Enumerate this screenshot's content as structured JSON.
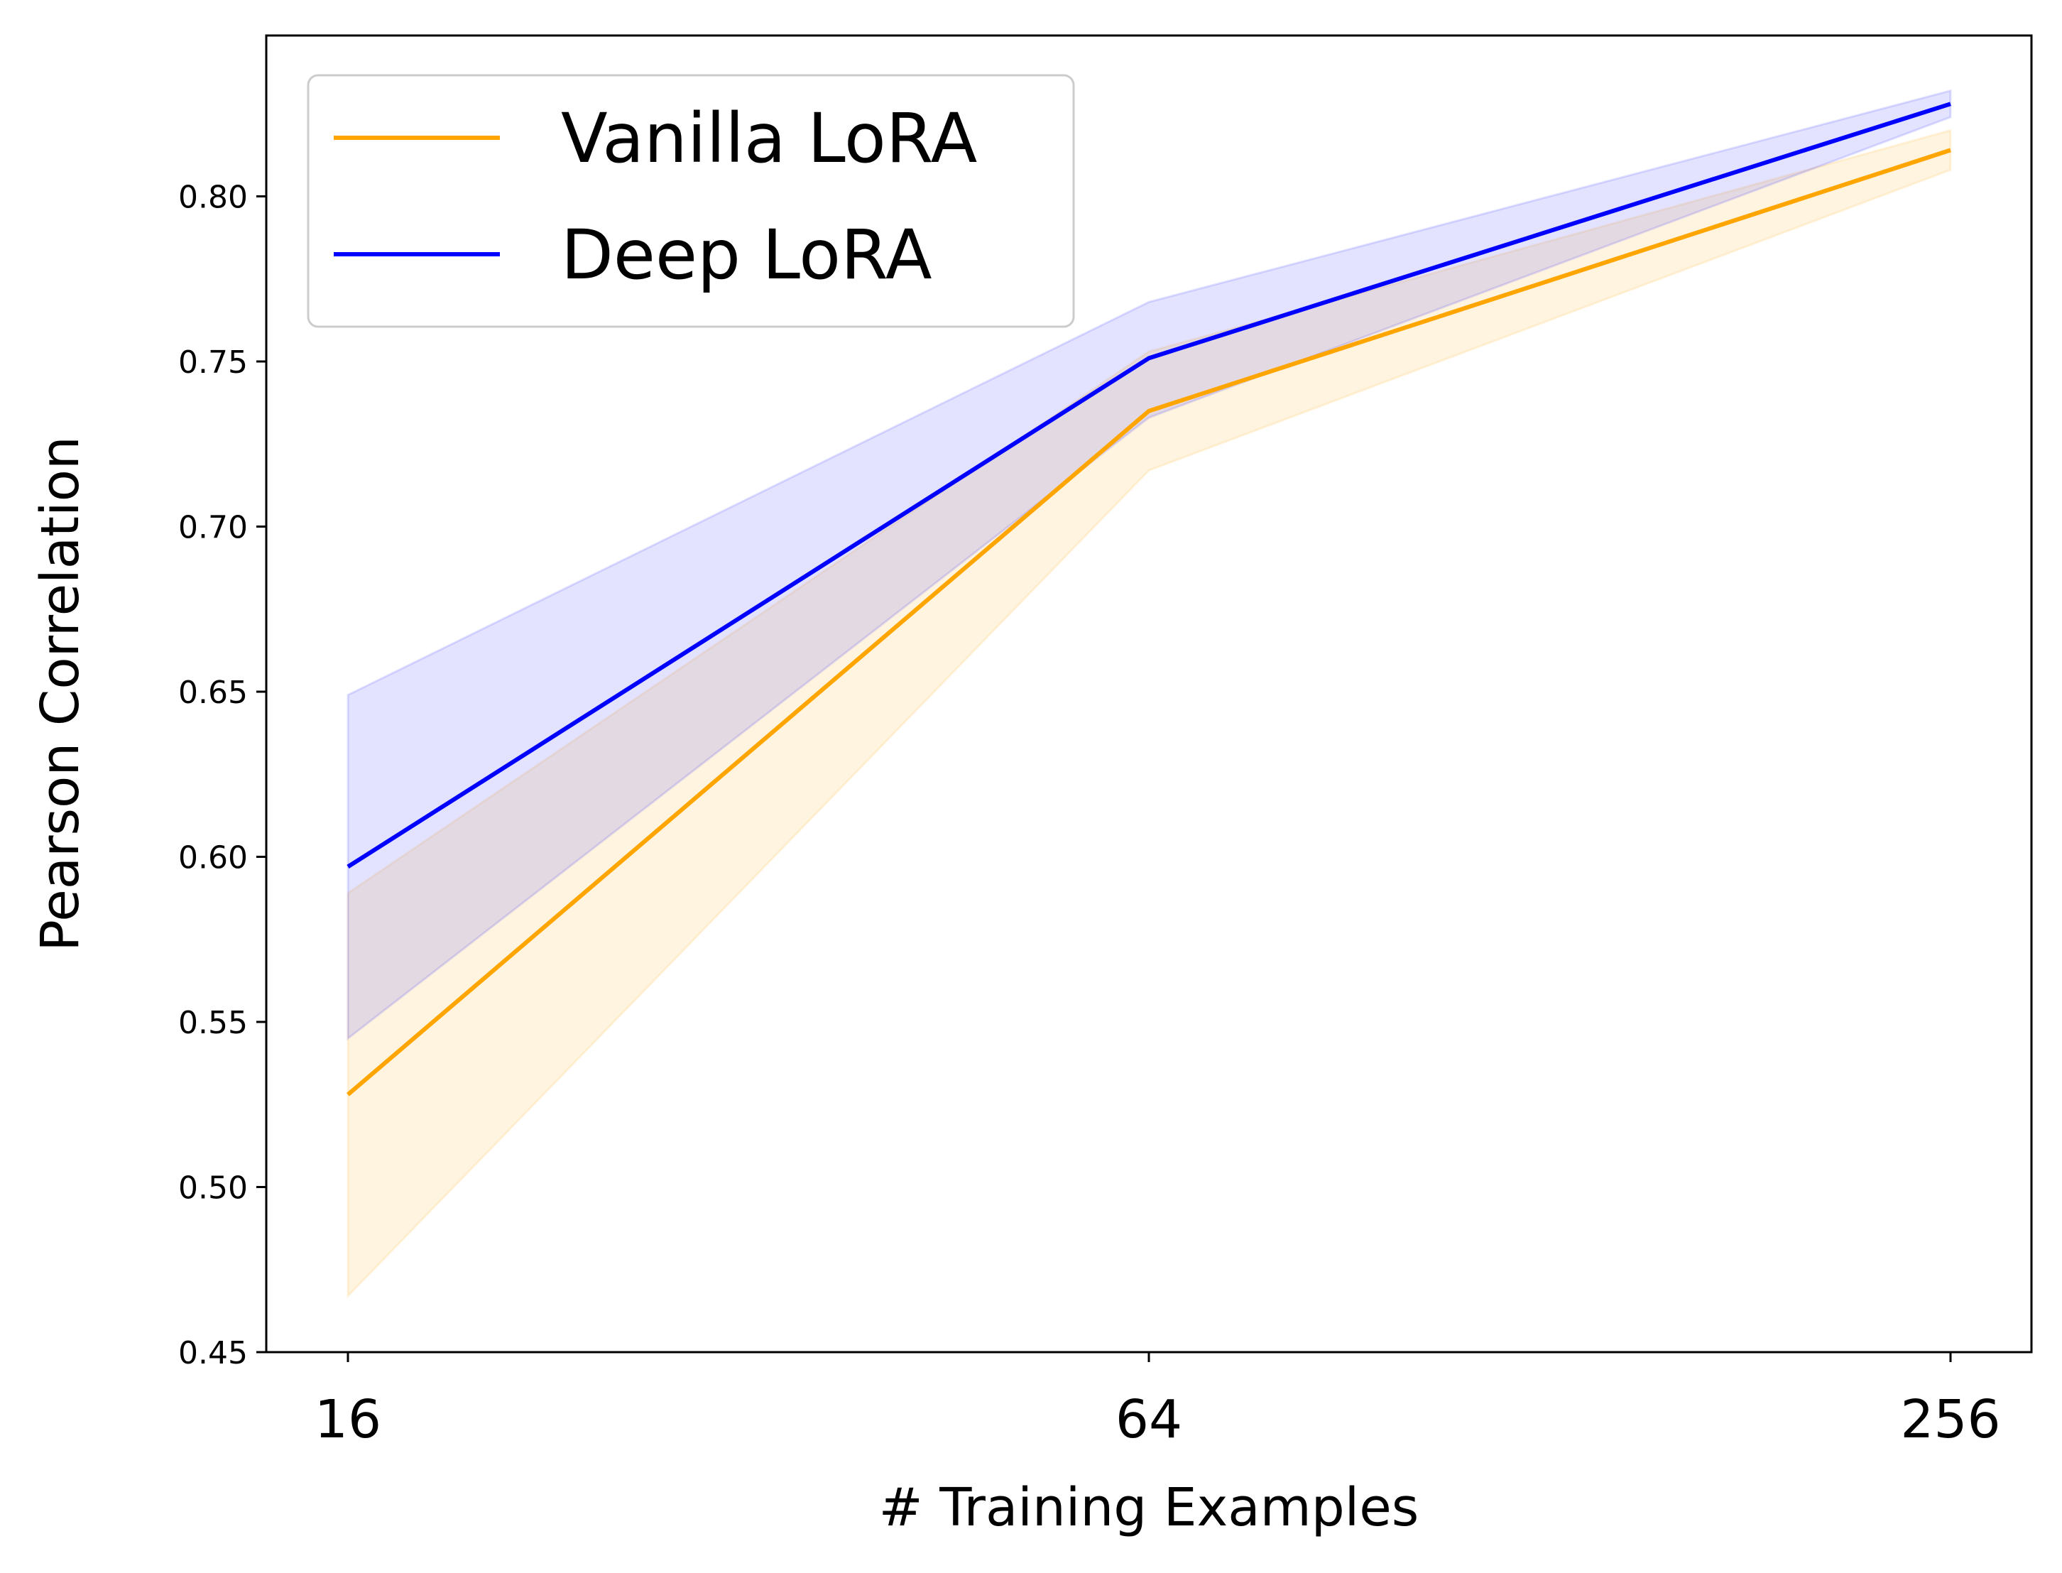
{
  "chart_data": {
    "type": "line",
    "title": "",
    "xlabel": "# Training Examples",
    "ylabel": "Pearson Correlation",
    "categories": [
      "16",
      "64",
      "256"
    ],
    "ylim": [
      0.45,
      0.85
    ],
    "yticks": [
      "0.45",
      "0.50",
      "0.55",
      "0.60",
      "0.65",
      "0.70",
      "0.75",
      "0.80"
    ],
    "grid": false,
    "legend_position": "top-left",
    "series": [
      {
        "name": "Vanilla LoRA",
        "color": "#FFA500",
        "band_color": "#FFA500",
        "values": [
          0.528,
          0.735,
          0.814
        ],
        "lower": [
          0.467,
          0.717,
          0.808
        ],
        "upper": [
          0.589,
          0.753,
          0.82
        ]
      },
      {
        "name": "Deep LoRA",
        "color": "#0000FF",
        "band_color": "#0000FF",
        "values": [
          0.597,
          0.751,
          0.828
        ],
        "lower": [
          0.545,
          0.733,
          0.824
        ],
        "upper": [
          0.649,
          0.768,
          0.832
        ]
      }
    ]
  }
}
